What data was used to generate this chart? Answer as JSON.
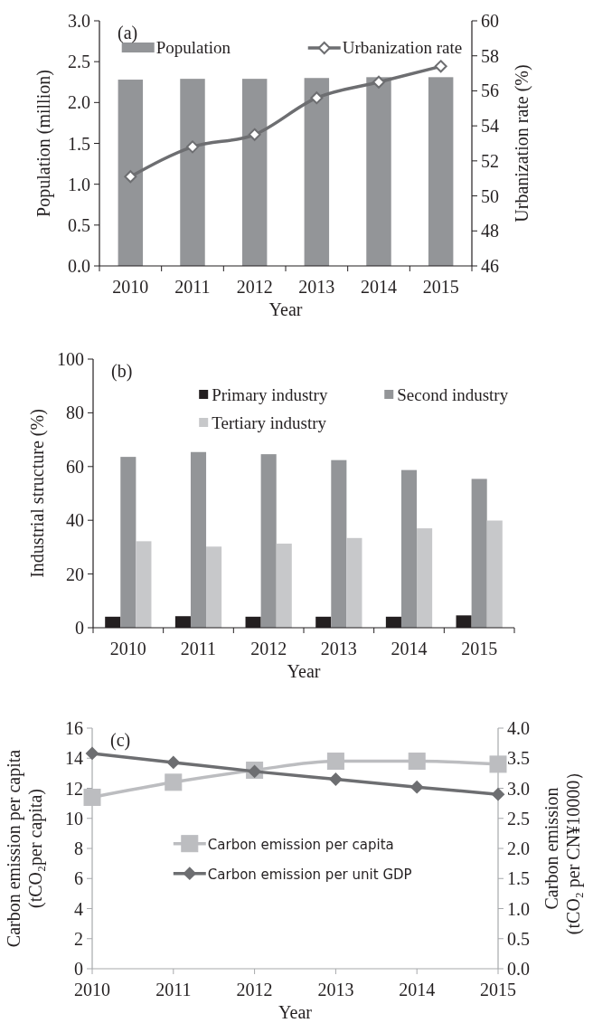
{
  "chart_data": [
    {
      "type": "bar",
      "categories": [
        "2010",
        "2011",
        "2012",
        "2013",
        "2014",
        "2015"
      ],
      "xlabel": "Year",
      "ylabel": "Population (million)",
      "y2label": "Urbanization rate (%)",
      "ylim": [
        0,
        3
      ],
      "yticks": [
        {
          "value": 0,
          "label": "0.0"
        },
        {
          "value": 0.5,
          "label": "0.5"
        },
        {
          "value": 1,
          "label": "1.0"
        },
        {
          "value": 1.5,
          "label": "1.5"
        },
        {
          "value": 2,
          "label": "2.0"
        },
        {
          "value": 2.5,
          "label": "2.5"
        },
        {
          "value": 3,
          "label": "3.0"
        }
      ],
      "y2lim": [
        46,
        60
      ],
      "y2ticks": [
        46,
        48,
        50,
        52,
        54,
        56,
        58,
        60
      ],
      "legend": "top",
      "annotations": [
        "(a)"
      ],
      "series": [
        {
          "name": "Population",
          "color": "#939598",
          "values": [
            2.28,
            2.29,
            2.29,
            2.3,
            2.31,
            2.31
          ]
        },
        {
          "name": "Urbanization rate",
          "type": "line",
          "axis": "y2",
          "color": "#6d6e71",
          "marker": "diamond",
          "values": [
            51.1,
            52.8,
            53.5,
            55.6,
            56.5,
            57.4
          ]
        }
      ]
    },
    {
      "type": "bar",
      "categories": [
        "2010",
        "2011",
        "2012",
        "2013",
        "2014",
        "2015"
      ],
      "xlabel": "Year",
      "ylabel": "Industrial structure (%)",
      "ylim": [
        0,
        100
      ],
      "yticks": [
        0,
        20,
        40,
        60,
        80,
        100
      ],
      "legend": "top",
      "annotations": [
        "(b)"
      ],
      "series": [
        {
          "name": "Primary industry",
          "color": "#231f20",
          "values": [
            4.1,
            4.3,
            4.1,
            4.1,
            4.1,
            4.6
          ]
        },
        {
          "name": "Second industry",
          "color": "#939598",
          "values": [
            63.6,
            65.4,
            64.6,
            62.4,
            58.7,
            55.4
          ]
        },
        {
          "name": "Tertiary industry",
          "color": "#c7c8ca",
          "values": [
            32.2,
            30.2,
            31.3,
            33.4,
            37.0,
            39.9
          ]
        }
      ]
    },
    {
      "type": "line",
      "x": [
        2010,
        2011,
        2012,
        2013,
        2014,
        2015
      ],
      "xlim": [
        2010,
        2015
      ],
      "xticks": [
        2010,
        2011,
        2012,
        2013,
        2014,
        2015
      ],
      "xlabel": "Year",
      "ylabel": "Carbon emission per capita\n(tCO₂per capita)",
      "y2label": "Carbon emission\n(tCO₂ per CN¥10000）",
      "ylim": [
        0,
        16
      ],
      "yticks": [
        0,
        2,
        4,
        6,
        8,
        10,
        12,
        14,
        16
      ],
      "y2lim": [
        0,
        4
      ],
      "y2ticks": [
        {
          "value": 0,
          "label": "0.0"
        },
        {
          "value": 0.5,
          "label": "0.5"
        },
        {
          "value": 1,
          "label": "1.0"
        },
        {
          "value": 1.5,
          "label": "1.5"
        },
        {
          "value": 2,
          "label": "2.0"
        },
        {
          "value": 2.5,
          "label": "2.5"
        },
        {
          "value": 3,
          "label": "3.0"
        },
        {
          "value": 3.5,
          "label": "3.5"
        },
        {
          "value": 4,
          "label": "4.0"
        }
      ],
      "legend": "left",
      "annotations": [
        "(c)"
      ],
      "series": [
        {
          "name": "Carbon emission per capita",
          "color": "#bcbdc0",
          "marker": "square",
          "values": [
            11.4,
            12.4,
            13.2,
            13.8,
            13.8,
            13.6
          ]
        },
        {
          "name": "Carbon emission per unit GDP",
          "axis": "y2",
          "color": "#6d6e71",
          "marker": "diamond",
          "values": [
            3.58,
            3.43,
            3.28,
            3.15,
            3.02,
            2.9
          ]
        }
      ]
    }
  ]
}
